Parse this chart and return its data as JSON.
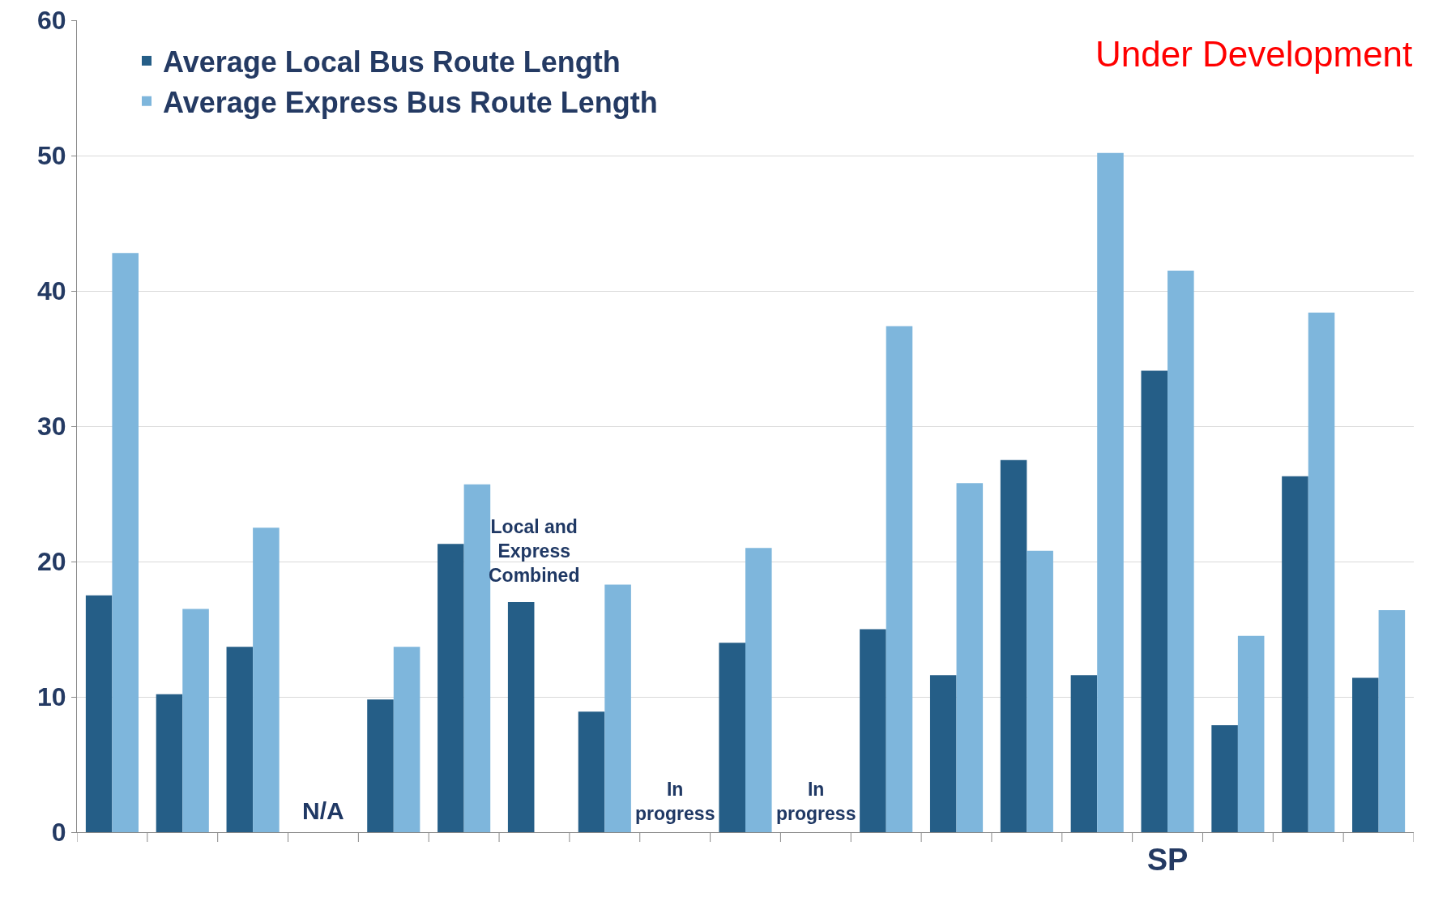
{
  "chart_data": {
    "type": "bar",
    "categories": [
      null,
      null,
      null,
      null,
      null,
      null,
      null,
      null,
      null,
      null,
      null,
      null,
      null,
      null,
      null,
      "SP",
      null,
      null,
      null
    ],
    "series": [
      {
        "name": "Average Local Bus Route Length",
        "color": "#255e87",
        "values": [
          17.5,
          10.2,
          13.7,
          null,
          9.8,
          21.3,
          17.0,
          8.9,
          null,
          14.0,
          null,
          15.0,
          11.6,
          27.5,
          11.6,
          34.1,
          7.9,
          26.3,
          11.4
        ]
      },
      {
        "name": "Average Express Bus Route Length",
        "color": "#7eb6dc",
        "values": [
          42.8,
          16.5,
          22.5,
          null,
          13.7,
          25.7,
          null,
          18.3,
          null,
          21.0,
          null,
          37.4,
          25.8,
          20.8,
          50.2,
          41.5,
          14.5,
          38.4,
          16.4
        ]
      }
    ],
    "ylim": [
      0,
      60
    ],
    "yticks": [
      0,
      10,
      20,
      30,
      40,
      50,
      60
    ],
    "grid": "y",
    "legend": "top left",
    "annotations": [
      "N/A",
      "Local and Express Combined",
      "In progress",
      "In progress",
      "Under Development"
    ]
  }
}
